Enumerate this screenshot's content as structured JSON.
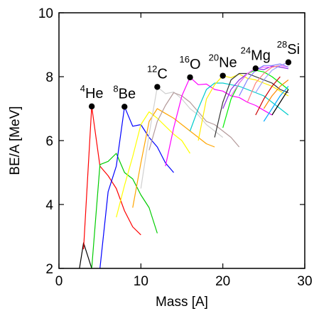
{
  "chart_data": {
    "type": "line",
    "xlabel": "Mass [A]",
    "ylabel": "BE/A [MeV]",
    "xlim": [
      0,
      30
    ],
    "ylim": [
      2,
      10
    ],
    "xticks": [
      "0",
      "10",
      "20",
      "30"
    ],
    "yticks": [
      "2",
      "4",
      "6",
      "8",
      "10"
    ],
    "grid": false,
    "legend": "none",
    "alpha_nuclei": [
      {
        "sup": "4",
        "sym": "He",
        "x": 4,
        "y": 7.07
      },
      {
        "sup": "8",
        "sym": "Be",
        "x": 8,
        "y": 7.06
      },
      {
        "sup": "12",
        "sym": "C",
        "x": 12,
        "y": 7.68
      },
      {
        "sup": "16",
        "sym": "O",
        "x": 16,
        "y": 7.98
      },
      {
        "sup": "20",
        "sym": "Ne",
        "x": 20,
        "y": 8.03
      },
      {
        "sup": "24",
        "sym": "Mg",
        "x": 24,
        "y": 8.26
      },
      {
        "sup": "28",
        "sym": "Si",
        "x": 28,
        "y": 8.45
      }
    ],
    "series": [
      {
        "color": "#000000",
        "x": [
          2,
          3,
          4
        ],
        "y": [
          1.2,
          2.8,
          2.0
        ]
      },
      {
        "color": "#ff0000",
        "x": [
          3,
          4,
          5,
          6,
          7,
          8,
          9,
          10
        ],
        "y": [
          2.6,
          7.07,
          5.2,
          4.9,
          4.5,
          3.8,
          3.3,
          3.05
        ]
      },
      {
        "color": "#00cc00",
        "x": [
          4,
          5,
          6,
          7,
          8,
          9,
          10,
          11,
          12
        ],
        "y": [
          2.0,
          5.25,
          5.35,
          5.6,
          5.0,
          4.8,
          4.3,
          3.9,
          3.1
        ]
      },
      {
        "color": "#0000ff",
        "x": [
          5,
          6,
          7,
          8,
          9,
          10,
          11,
          12,
          13,
          14
        ],
        "y": [
          2.0,
          4.4,
          5.2,
          7.06,
          6.45,
          6.5,
          6.1,
          5.8,
          5.3,
          5.0
        ]
      },
      {
        "color": "#ffff00",
        "x": [
          7,
          8,
          9,
          10,
          11,
          12,
          13,
          14,
          15,
          16
        ],
        "y": [
          3.6,
          4.6,
          5.5,
          6.5,
          6.9,
          6.7,
          6.45,
          6.2,
          6.0,
          5.6
        ]
      },
      {
        "color": "#ffa500",
        "x": [
          9,
          10,
          11,
          12,
          13,
          14,
          15,
          16,
          17,
          18,
          19
        ],
        "y": [
          3.9,
          5.3,
          6.6,
          7.0,
          6.85,
          6.7,
          6.5,
          6.3,
          6.1,
          5.9,
          5.8
        ]
      },
      {
        "color": "#d0d0d0",
        "x": [
          10,
          11,
          12,
          13,
          14,
          15,
          16,
          17,
          18,
          19,
          20
        ],
        "y": [
          4.5,
          6.2,
          7.68,
          7.47,
          7.52,
          7.3,
          7.0,
          6.8,
          6.5,
          6.3,
          6.1
        ]
      },
      {
        "color": "#b39999",
        "x": [
          11,
          12,
          13,
          14,
          15,
          16,
          17,
          18,
          19,
          20,
          21,
          22
        ],
        "y": [
          5.7,
          6.6,
          7.1,
          7.5,
          7.4,
          7.2,
          6.9,
          6.6,
          6.5,
          6.3,
          6.1,
          5.8
        ]
      },
      {
        "color": "#ff00ff",
        "x": [
          13,
          14,
          15,
          16,
          17,
          18,
          19,
          20,
          21,
          22,
          23,
          24,
          25,
          26
        ],
        "y": [
          5.2,
          6.4,
          7.4,
          7.98,
          7.75,
          7.77,
          7.6,
          7.55,
          7.4,
          7.35,
          7.2,
          7.1,
          6.95,
          6.8
        ]
      },
      {
        "color": "#00cccc",
        "x": [
          16,
          17,
          18,
          19,
          20,
          21,
          22,
          23,
          24,
          25,
          26,
          27,
          28
        ],
        "y": [
          6.3,
          7.0,
          7.6,
          7.8,
          7.8,
          7.75,
          7.7,
          7.6,
          7.5,
          7.4,
          7.2,
          7.0,
          6.8
        ]
      },
      {
        "color": "#ffee00",
        "x": [
          17,
          18,
          19,
          20,
          21,
          22,
          23,
          24,
          25,
          26,
          27,
          28
        ],
        "y": [
          6.0,
          7.3,
          7.75,
          8.03,
          7.97,
          8.08,
          7.95,
          7.9,
          7.8,
          7.7,
          7.55,
          7.4
        ]
      },
      {
        "color": "#333333",
        "x": [
          19,
          20,
          21,
          22,
          23,
          24,
          25,
          26,
          27,
          28
        ],
        "y": [
          6.1,
          7.2,
          7.9,
          8.1,
          8.1,
          8.0,
          7.9,
          7.8,
          7.6,
          7.5
        ]
      },
      {
        "color": "#00ee00",
        "x": [
          20,
          21,
          22,
          23,
          24,
          25,
          26,
          27,
          28
        ],
        "y": [
          6.4,
          7.3,
          7.8,
          8.1,
          8.2,
          8.15,
          8.0,
          7.8,
          7.6
        ]
      },
      {
        "color": "#8a2be2",
        "x": [
          20,
          21,
          22,
          23,
          24,
          25,
          26,
          27,
          28
        ],
        "y": [
          7.0,
          7.6,
          7.9,
          8.1,
          8.26,
          8.22,
          8.33,
          8.3,
          8.25
        ]
      },
      {
        "color": "#ff66ff",
        "x": [
          21,
          22,
          23,
          24,
          25,
          26,
          27,
          28
        ],
        "y": [
          7.4,
          7.8,
          8.1,
          8.25,
          8.3,
          8.3,
          8.35,
          8.3
        ]
      },
      {
        "color": "#8080ff",
        "x": [
          22,
          23,
          24,
          25,
          26,
          27,
          28
        ],
        "y": [
          7.4,
          7.9,
          8.2,
          8.35,
          8.35,
          8.4,
          8.3
        ]
      },
      {
        "color": "#ff8080",
        "x": [
          23,
          24,
          25,
          26,
          27,
          28
        ],
        "y": [
          7.2,
          7.8,
          8.1,
          8.3,
          8.35,
          8.45
        ]
      },
      {
        "color": "#a0a0ff",
        "x": [
          24,
          25,
          26,
          27,
          28
        ],
        "y": [
          7.5,
          7.9,
          8.2,
          8.35,
          8.45
        ]
      },
      {
        "color": "#cc0000",
        "x": [
          24,
          25,
          26,
          27
        ],
        "y": [
          6.8,
          7.3,
          7.7,
          8.0
        ]
      },
      {
        "color": "#ff8800",
        "x": [
          25,
          26,
          27,
          28
        ],
        "y": [
          7.0,
          7.4,
          7.7,
          7.9
        ]
      },
      {
        "color": "#00aaff",
        "x": [
          25,
          26,
          27,
          28
        ],
        "y": [
          6.6,
          7.0,
          7.4,
          7.7
        ]
      },
      {
        "color": "#000000",
        "x": [
          26,
          27,
          28
        ],
        "y": [
          6.8,
          7.2,
          7.6
        ]
      }
    ]
  }
}
